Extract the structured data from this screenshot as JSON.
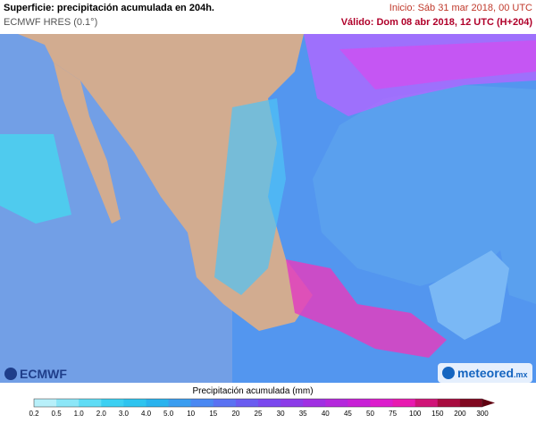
{
  "header": {
    "title": "Superficie: precipitación acumulada en 204h.",
    "model": "ECMWF HRES (0.1°)",
    "init": "Inicio: Sáb 31 mar 2018, 00 UTC",
    "valid": "Válido: Dom 08 abr 2018, 12 UTC (H+204)"
  },
  "logos": {
    "left": "ECMWF",
    "right": "meteored",
    "right_suffix": ".mx"
  },
  "legend": {
    "label": "Precipitación acumulada (mm)",
    "ticks": [
      "0.2",
      "0.5",
      "1.0",
      "2.0",
      "3.0",
      "4.0",
      "5.0",
      "10",
      "15",
      "20",
      "25",
      "30",
      "35",
      "40",
      "45",
      "50",
      "75",
      "100",
      "150",
      "200",
      "300"
    ]
  }
}
